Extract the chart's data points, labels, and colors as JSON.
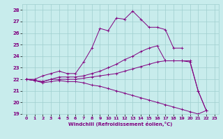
{
  "xlabel": "Windchill (Refroidissement éolien,°C)",
  "bg_color": "#c8ecec",
  "grid_color": "#9fcfcf",
  "line_color": "#800080",
  "xlim": [
    -0.5,
    23.5
  ],
  "ylim": [
    19,
    28.5
  ],
  "yticks": [
    19,
    20,
    21,
    22,
    23,
    24,
    25,
    26,
    27,
    28
  ],
  "xticks": [
    0,
    1,
    2,
    3,
    4,
    5,
    6,
    7,
    8,
    9,
    10,
    11,
    12,
    13,
    14,
    15,
    16,
    17,
    18,
    19,
    20,
    21,
    22,
    23
  ],
  "series": [
    {
      "x": [
        0,
        1,
        2,
        3,
        4,
        5,
        6,
        7,
        8,
        9,
        10,
        11,
        12,
        13,
        14,
        15,
        16,
        17,
        18,
        19
      ],
      "y": [
        22.0,
        22.0,
        22.3,
        22.5,
        22.7,
        22.5,
        22.5,
        23.5,
        24.7,
        26.4,
        26.2,
        27.3,
        27.2,
        27.9,
        27.2,
        26.5,
        26.5,
        26.3,
        24.7,
        24.7
      ]
    },
    {
      "x": [
        0,
        1,
        2,
        3,
        4,
        5,
        6,
        7,
        8,
        9,
        10,
        11,
        12,
        13,
        14,
        15,
        16,
        17,
        18,
        19,
        20,
        21,
        22
      ],
      "y": [
        22.0,
        21.9,
        21.8,
        22.0,
        22.2,
        22.2,
        22.2,
        22.3,
        22.5,
        22.7,
        23.0,
        23.3,
        23.7,
        24.0,
        24.4,
        24.7,
        24.9,
        23.6,
        23.6,
        23.6,
        23.6,
        21.0,
        19.3
      ]
    },
    {
      "x": [
        0,
        1,
        2,
        3,
        4,
        5,
        6,
        7,
        8,
        9,
        10,
        11,
        12,
        13,
        14,
        15,
        16,
        17,
        18,
        19,
        20,
        21,
        22
      ],
      "y": [
        22.0,
        21.9,
        21.8,
        22.0,
        22.0,
        22.0,
        22.0,
        22.1,
        22.2,
        22.3,
        22.4,
        22.5,
        22.7,
        22.9,
        23.1,
        23.3,
        23.5,
        23.6,
        23.6,
        23.6,
        23.5,
        21.0,
        19.3
      ]
    },
    {
      "x": [
        0,
        1,
        2,
        3,
        4,
        5,
        6,
        7,
        8,
        9,
        10,
        11,
        12,
        13,
        14,
        15,
        16,
        17,
        18,
        19,
        20,
        21,
        22
      ],
      "y": [
        22.0,
        21.9,
        21.7,
        21.8,
        21.9,
        21.8,
        21.8,
        21.7,
        21.5,
        21.4,
        21.2,
        21.0,
        20.8,
        20.6,
        20.4,
        20.2,
        20.0,
        19.8,
        19.6,
        19.4,
        19.2,
        19.0,
        19.3
      ]
    }
  ]
}
